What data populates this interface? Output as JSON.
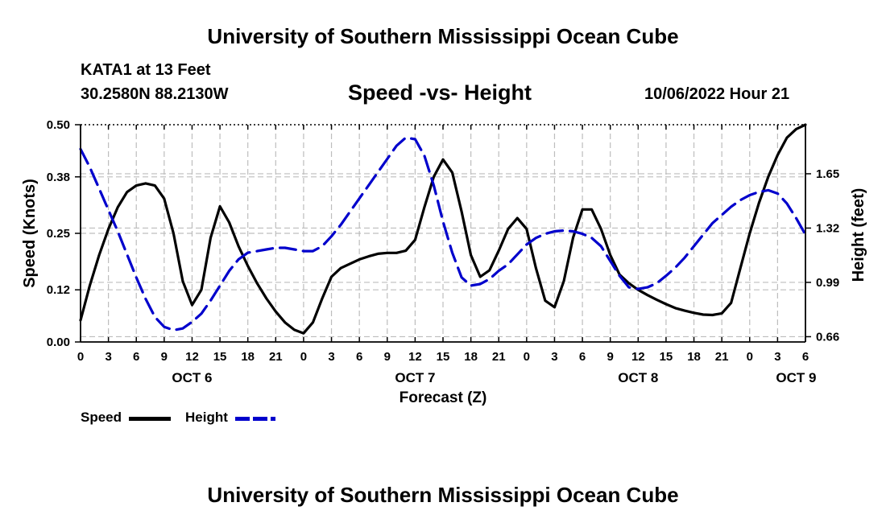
{
  "header": {
    "title": "University of Southern Mississippi Ocean Cube",
    "station": "KATA1 at 13 Feet",
    "coords": "30.2580N  88.2130W",
    "subtitle": "Speed -vs- Height",
    "timestamp": "10/06/2022 Hour 21"
  },
  "footer": {
    "title": "University of Southern Mississippi Ocean Cube"
  },
  "legend": {
    "speed_label": "Speed",
    "height_label": "Height"
  },
  "colors": {
    "speed": "#000000",
    "height": "#0000cc",
    "grid": "#bdbdbd"
  },
  "chart_data": {
    "type": "line",
    "xlabel": "Forecast (Z)",
    "ylabel": "Speed (Knots)",
    "y2label": "Height (feet)",
    "xlim": [
      0,
      78
    ],
    "ylim": [
      0,
      0.5
    ],
    "y2lim": [
      0.628,
      1.948
    ],
    "x_ticks": [
      0,
      3,
      6,
      9,
      12,
      15,
      18,
      21,
      24,
      27,
      30,
      33,
      36,
      39,
      42,
      45,
      48,
      51,
      54,
      57,
      60,
      63,
      66,
      69,
      72,
      75,
      78
    ],
    "x_tick_labels": [
      "0",
      "3",
      "6",
      "9",
      "12",
      "15",
      "18",
      "21",
      "0",
      "3",
      "6",
      "9",
      "12",
      "15",
      "18",
      "21",
      "0",
      "3",
      "6",
      "9",
      "12",
      "15",
      "18",
      "21",
      "0",
      "3",
      "6"
    ],
    "date_labels": [
      {
        "label": "OCT 6",
        "x": 12
      },
      {
        "label": "OCT 7",
        "x": 36
      },
      {
        "label": "OCT 8",
        "x": 60
      },
      {
        "label": "OCT 9",
        "x": 77
      }
    ],
    "y_ticks": [
      0.0,
      0.12,
      0.25,
      0.38,
      0.5
    ],
    "y_tick_labels": [
      "0.00",
      "0.12",
      "0.25",
      "0.38",
      "0.50"
    ],
    "y2_ticks": [
      0.66,
      0.99,
      1.32,
      1.65
    ],
    "y2_tick_labels": [
      "0.66",
      "0.99",
      "1.32",
      "1.65"
    ],
    "series": [
      {
        "name": "Speed",
        "axis": "left",
        "style": "solid",
        "x": [
          0,
          1,
          2,
          3,
          4,
          5,
          6,
          7,
          8,
          9,
          10,
          11,
          12,
          13,
          14,
          15,
          16,
          17,
          18,
          19,
          20,
          21,
          22,
          23,
          24,
          25,
          26,
          27,
          28,
          29,
          30,
          31,
          32,
          33,
          34,
          35,
          36,
          37,
          38,
          39,
          40,
          41,
          42,
          43,
          44,
          45,
          46,
          47,
          48,
          49,
          50,
          51,
          52,
          53,
          54,
          55,
          56,
          57,
          58,
          59,
          60,
          61,
          62,
          63,
          64,
          65,
          66,
          67,
          68,
          69,
          70,
          71,
          72,
          73,
          74,
          75,
          76,
          77,
          78
        ],
        "values": [
          0.05,
          0.13,
          0.2,
          0.26,
          0.31,
          0.345,
          0.36,
          0.365,
          0.36,
          0.33,
          0.25,
          0.14,
          0.085,
          0.12,
          0.24,
          0.312,
          0.275,
          0.22,
          0.175,
          0.135,
          0.1,
          0.07,
          0.045,
          0.028,
          0.02,
          0.045,
          0.1,
          0.15,
          0.17,
          0.18,
          0.19,
          0.197,
          0.203,
          0.205,
          0.205,
          0.21,
          0.235,
          0.31,
          0.38,
          0.42,
          0.39,
          0.3,
          0.2,
          0.15,
          0.165,
          0.21,
          0.26,
          0.285,
          0.26,
          0.17,
          0.095,
          0.08,
          0.14,
          0.24,
          0.305,
          0.305,
          0.26,
          0.2,
          0.155,
          0.135,
          0.12,
          0.108,
          0.097,
          0.087,
          0.078,
          0.072,
          0.067,
          0.063,
          0.062,
          0.066,
          0.09,
          0.17,
          0.25,
          0.32,
          0.38,
          0.43,
          0.47,
          0.49,
          0.5
        ]
      },
      {
        "name": "Height",
        "axis": "right",
        "style": "dashed",
        "x": [
          0,
          1,
          2,
          3,
          4,
          5,
          6,
          7,
          8,
          9,
          10,
          11,
          12,
          13,
          14,
          15,
          16,
          17,
          18,
          19,
          20,
          21,
          22,
          23,
          24,
          25,
          26,
          27,
          28,
          29,
          30,
          31,
          32,
          33,
          34,
          35,
          36,
          37,
          38,
          39,
          40,
          41,
          42,
          43,
          44,
          45,
          46,
          47,
          48,
          49,
          50,
          51,
          52,
          53,
          54,
          55,
          56,
          57,
          58,
          59,
          60,
          61,
          62,
          63,
          64,
          65,
          66,
          67,
          68,
          69,
          70,
          71,
          72,
          73,
          74,
          75,
          76,
          77,
          78
        ],
        "values": [
          1.8,
          1.69,
          1.56,
          1.43,
          1.3,
          1.16,
          1.02,
          0.89,
          0.78,
          0.72,
          0.7,
          0.71,
          0.75,
          0.8,
          0.88,
          0.97,
          1.06,
          1.13,
          1.17,
          1.18,
          1.19,
          1.2,
          1.2,
          1.19,
          1.18,
          1.18,
          1.21,
          1.27,
          1.34,
          1.42,
          1.5,
          1.58,
          1.66,
          1.74,
          1.82,
          1.87,
          1.86,
          1.76,
          1.58,
          1.36,
          1.17,
          1.02,
          0.97,
          0.98,
          1.01,
          1.06,
          1.1,
          1.16,
          1.22,
          1.26,
          1.285,
          1.3,
          1.305,
          1.3,
          1.285,
          1.26,
          1.21,
          1.12,
          1.03,
          0.96,
          0.95,
          0.96,
          0.985,
          1.03,
          1.08,
          1.14,
          1.21,
          1.28,
          1.35,
          1.4,
          1.45,
          1.49,
          1.52,
          1.54,
          1.55,
          1.53,
          1.47,
          1.38,
          1.28
        ]
      }
    ]
  }
}
